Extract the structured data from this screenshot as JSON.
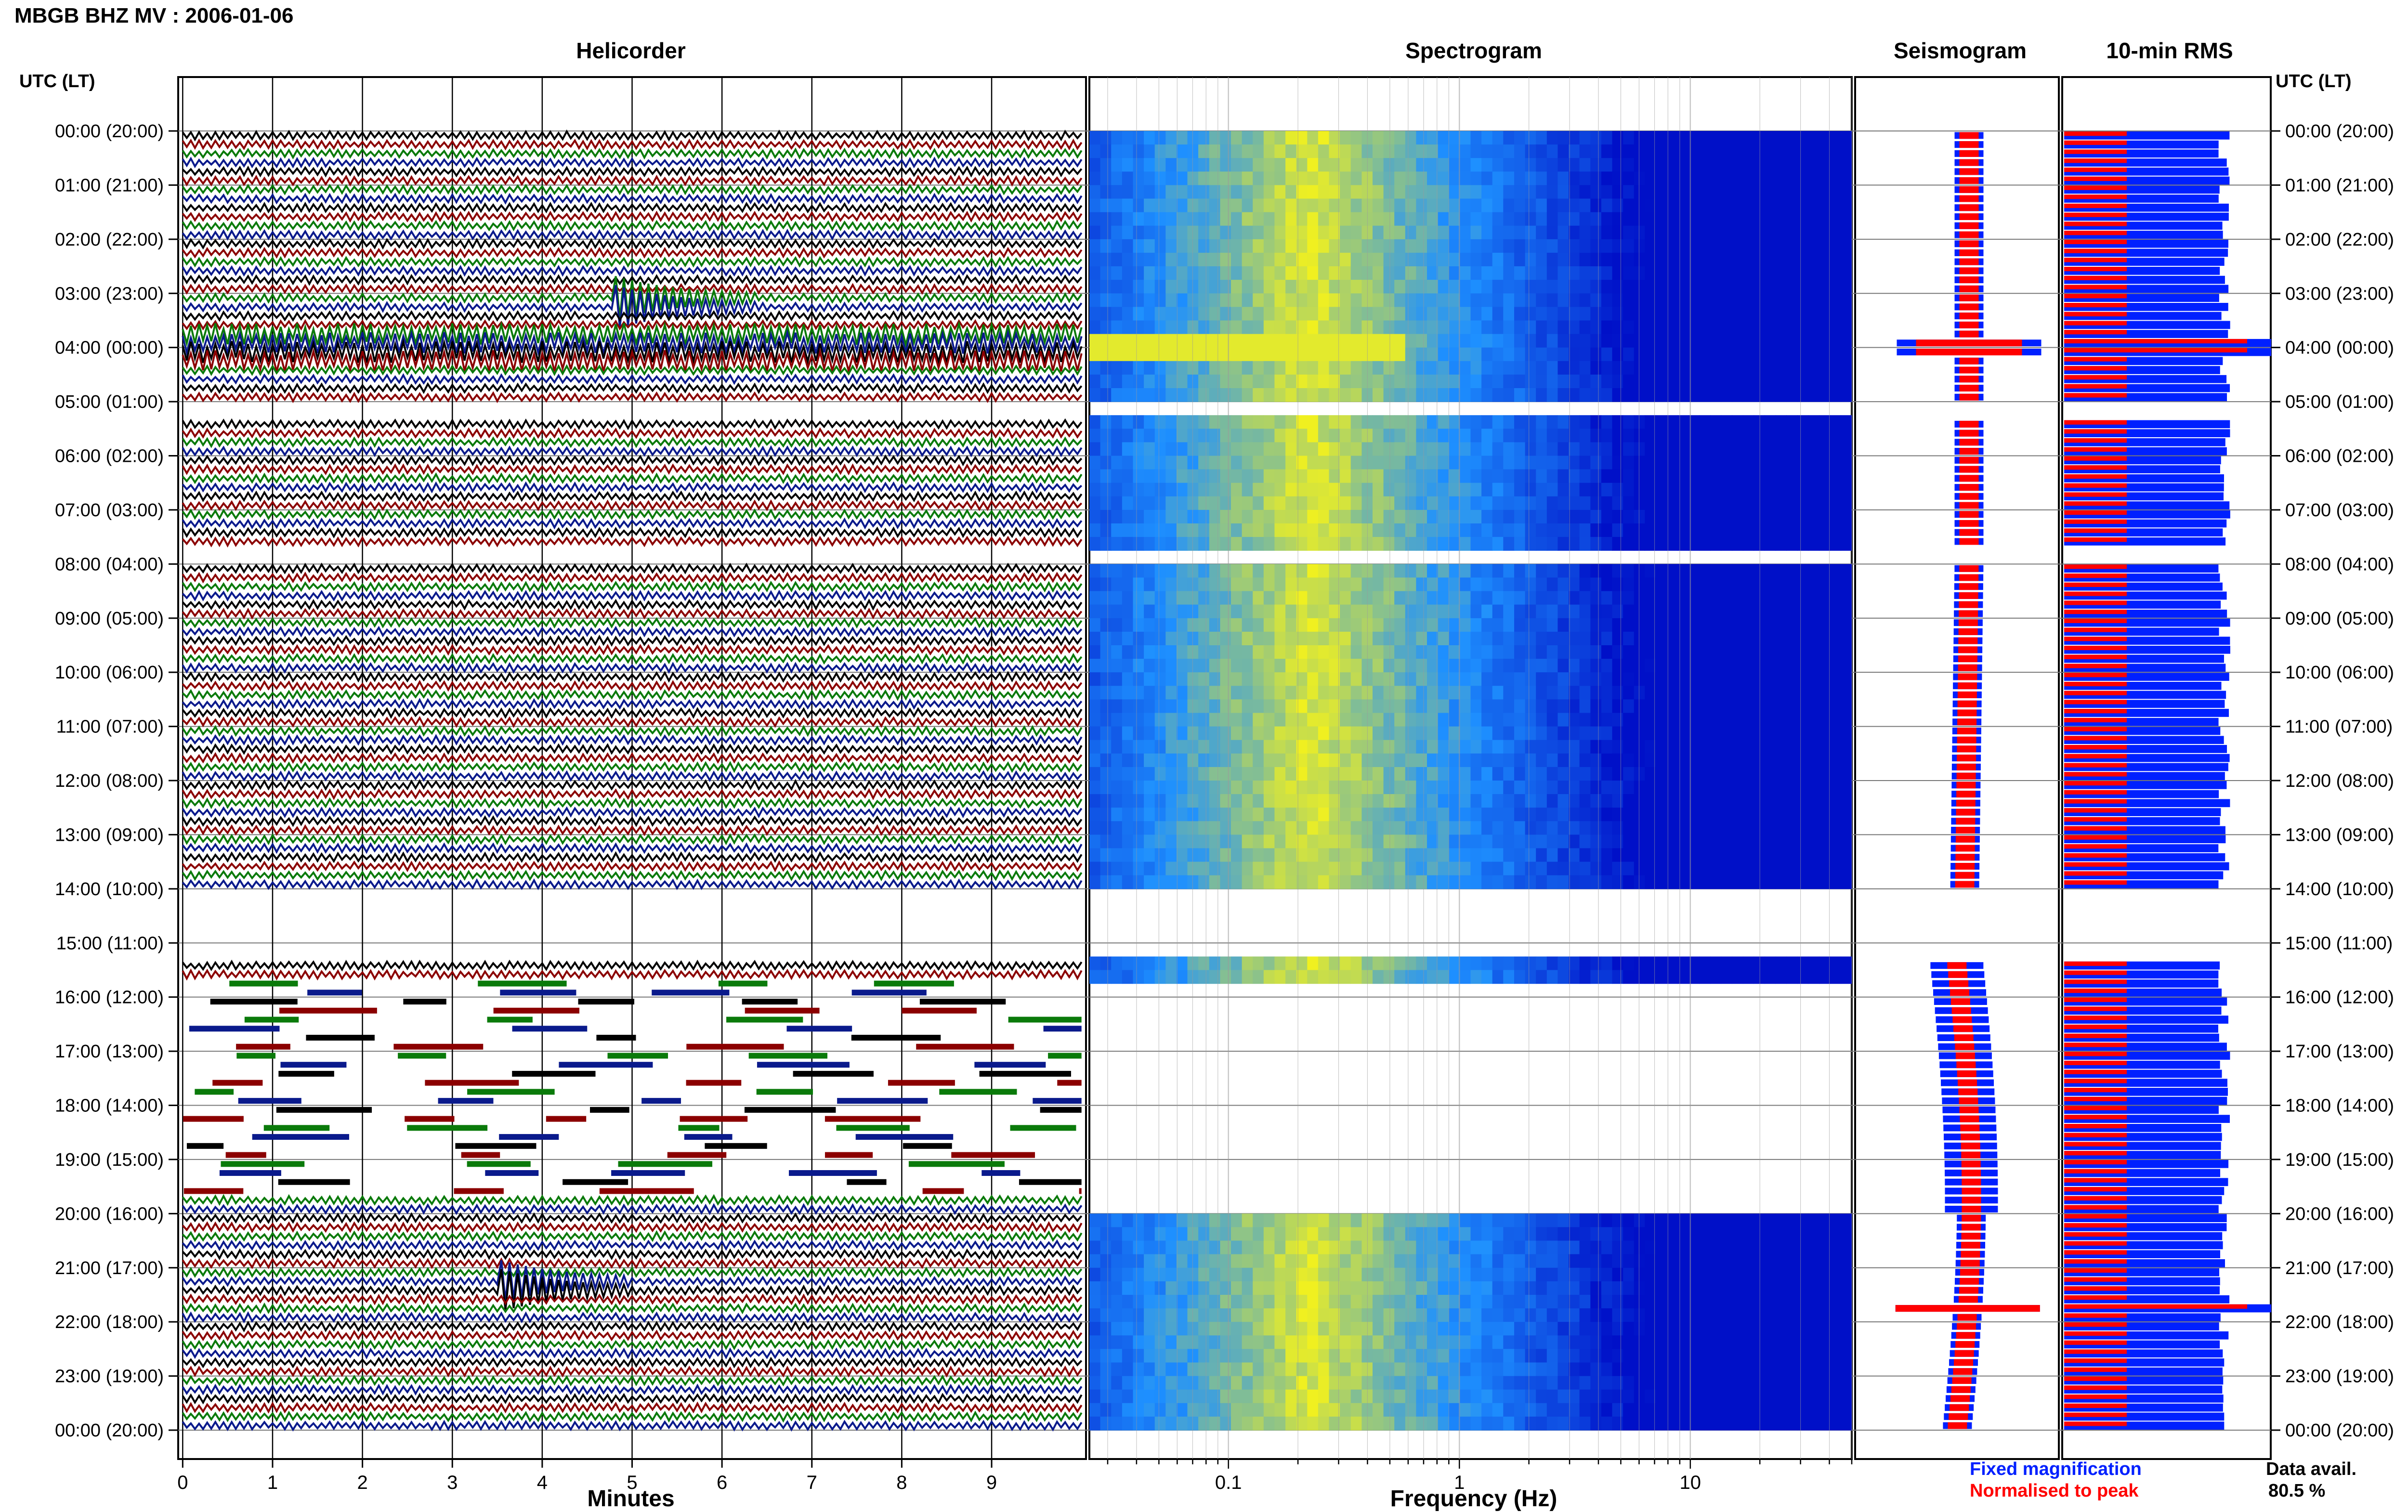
{
  "page": {
    "title": "MBGB BHZ MV : 2006-01-06"
  },
  "panels": {
    "helicorder": "Helicorder",
    "spectrogram": "Spectrogram",
    "seismogram": "Seismogram",
    "rms": "10-min RMS"
  },
  "axis_heading": "UTC (LT)",
  "legend": {
    "fixed": "Fixed magnification",
    "normalised": "Normalised to peak",
    "data_avail_label": "Data avail.",
    "data_avail_value": "80.5 %"
  },
  "colors": {
    "trace_cycle": [
      "#000000",
      "#8b0000",
      "#0a7a0a",
      "#0a1a8c"
    ],
    "fixed": "#0020ff",
    "normalised": "#ff0000",
    "spec_low": "#0010c8",
    "spec_mid": "#1e90ff",
    "spec_high": "#f0f020"
  },
  "chart_data": [
    {
      "type": "line",
      "name": "helicorder",
      "title": "Helicorder",
      "xlabel": "Minutes",
      "x_ticks": [
        0,
        1,
        2,
        3,
        4,
        5,
        6,
        7,
        8,
        9
      ],
      "xlim": [
        0,
        10
      ],
      "y_tick_labels": [
        "00:00 (20:00)",
        "01:00 (21:00)",
        "02:00 (22:00)",
        "03:00 (23:00)",
        "04:00 (00:00)",
        "05:00 (01:00)",
        "06:00 (02:00)",
        "07:00 (03:00)",
        "08:00 (04:00)",
        "09:00 (05:00)",
        "10:00 (06:00)",
        "11:00 (07:00)",
        "12:00 (08:00)",
        "13:00 (09:00)",
        "14:00 (10:00)",
        "15:00 (11:00)",
        "16:00 (12:00)",
        "17:00 (13:00)",
        "18:00 (14:00)",
        "19:00 (15:00)",
        "20:00 (16:00)",
        "21:00 (17:00)",
        "22:00 (18:00)",
        "23:00 (19:00)",
        "00:00 (20:00)"
      ],
      "data_segments_hours": [
        [
          0,
          5
        ],
        [
          5.35,
          7.65
        ],
        [
          8,
          14
        ],
        [
          15.3,
          24
        ]
      ],
      "gappy_segment_hours": [
        15.7,
        19.65
      ],
      "events": [
        {
          "hour": 3.2,
          "minute_start": 4.8,
          "minute_end": 6.4,
          "amplitude": "large"
        },
        {
          "hour": 21.35,
          "minute_start": 3.5,
          "minute_end": 5.0,
          "amplitude": "large"
        }
      ]
    },
    {
      "type": "heatmap",
      "name": "spectrogram",
      "title": "Spectrogram",
      "xlabel": "Frequency (Hz)",
      "x_scale": "log",
      "xlim": [
        0.025,
        50
      ],
      "x_tick_labels": [
        "0.1",
        "1",
        "10"
      ],
      "x_ticks": [
        0.1,
        1,
        10
      ],
      "data_segments_hours": [
        [
          0,
          5
        ],
        [
          5.35,
          7.65
        ],
        [
          8,
          14
        ],
        [
          15.35,
          15.8
        ],
        [
          20,
          24
        ]
      ],
      "peak_band_hz": [
        0.15,
        0.35
      ]
    },
    {
      "type": "line",
      "name": "seismogram",
      "title": "Seismogram",
      "series": [
        {
          "name": "Fixed magnification",
          "color": "#0020ff"
        },
        {
          "name": "Normalised to peak",
          "color": "#ff0000"
        }
      ]
    },
    {
      "type": "bar",
      "name": "10-min RMS",
      "title": "10-min RMS",
      "orientation": "horizontal",
      "series": [
        {
          "name": "Fixed magnification",
          "color": "#0020ff"
        },
        {
          "name": "Normalised to peak",
          "color": "#ff0000"
        }
      ],
      "data_segments_hours": [
        [
          0,
          5
        ],
        [
          5.35,
          7.65
        ],
        [
          8,
          14
        ],
        [
          15.35,
          24
        ]
      ],
      "peaks_hours": [
        3.9,
        4.05,
        21.75
      ]
    }
  ]
}
